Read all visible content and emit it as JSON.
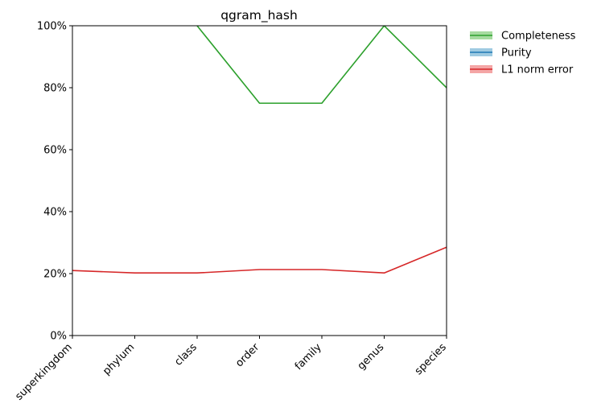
{
  "chart_data": {
    "type": "line",
    "title": "qgram_hash",
    "xlabel": "",
    "ylabel": "",
    "categories": [
      "superkingdom",
      "phylum",
      "class",
      "order",
      "family",
      "genus",
      "species"
    ],
    "y_ticks": [
      "0%",
      "20%",
      "40%",
      "60%",
      "80%",
      "100%"
    ],
    "ylim": [
      0,
      1
    ],
    "grid": false,
    "legend_position": "outside-top-right",
    "series": [
      {
        "name": "Completeness",
        "color": "#2ca02c",
        "band_color": "#a6dba0",
        "values": [
          null,
          null,
          1.0,
          0.75,
          0.75,
          1.0,
          0.8
        ]
      },
      {
        "name": "Purity",
        "color": "#1f77b4",
        "band_color": "#9ecae1",
        "values": [
          null,
          null,
          null,
          null,
          null,
          null,
          null
        ]
      },
      {
        "name": "L1 norm error",
        "color": "#d62728",
        "band_color": "#f4a6a6",
        "values": [
          0.21,
          0.202,
          0.202,
          0.213,
          0.213,
          0.202,
          0.285
        ]
      }
    ]
  }
}
